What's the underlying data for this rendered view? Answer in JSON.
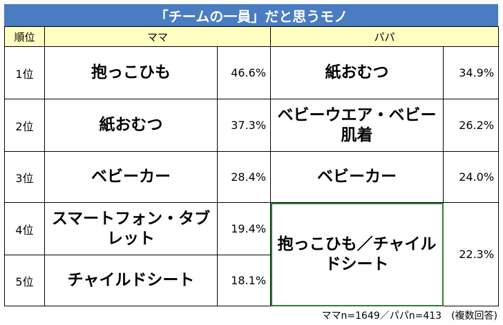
{
  "title": "「チームの一員」だと思うモノ",
  "header": {
    "rank": "順位",
    "mama": "ママ",
    "papa": "パパ"
  },
  "rows": [
    {
      "rank": "1位",
      "mama_item": "抱っこひも",
      "mama_pct": "46.6%",
      "papa_item": "紙おむつ",
      "papa_pct": "34.9%"
    },
    {
      "rank": "2位",
      "mama_item": "紙おむつ",
      "mama_pct": "37.3%",
      "papa_item": "ベビーウエア・ベビー肌着",
      "papa_pct": "26.2%"
    },
    {
      "rank": "3位",
      "mama_item": "ベビーカー",
      "mama_pct": "28.4%",
      "papa_item": "ベビーカー",
      "papa_pct": "24.0%"
    },
    {
      "rank": "4位",
      "mama_item": "スマートフォン・タブレット",
      "mama_pct": "19.4%",
      "papa_item": "抱っこひも／チャイルドシート",
      "papa_pct": "22.3%"
    },
    {
      "rank": "5位",
      "mama_item": "チャイルドシート",
      "mama_pct": "18.1%"
    }
  ],
  "footnote": "ママn=1649／パパn=413　(複数回答)",
  "colors": {
    "title_bg": "#4a7cc2",
    "header_bg": "#ffffc2",
    "merged_border": "#2e7d32"
  }
}
